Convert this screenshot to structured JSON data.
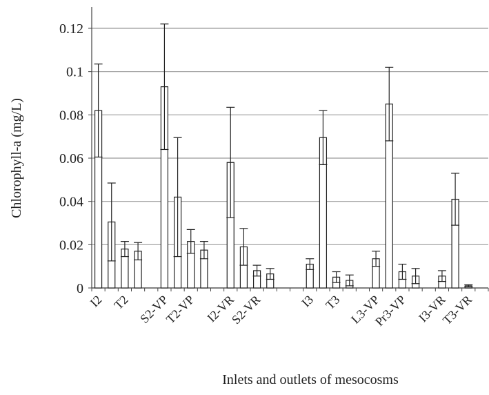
{
  "chart_data": {
    "type": "bar",
    "xlabel": "Inlets and outlets of mesocosms",
    "ylabel": "Chlorophyll-a (mg/L)",
    "categories": [
      "I2",
      null,
      "T2",
      null,
      null,
      "S2-VP",
      null,
      "T2-VP",
      null,
      null,
      "I2-VR",
      null,
      "S2-VR",
      null,
      null,
      null,
      "I3",
      null,
      "T3",
      null,
      null,
      "L3-VP",
      null,
      "Pr3-VP",
      null,
      null,
      "I3-VR",
      null,
      "T3-VR",
      null
    ],
    "values": [
      0.082,
      0.0305,
      0.018,
      0.017,
      null,
      0.093,
      0.042,
      0.0215,
      0.0175,
      null,
      0.058,
      0.019,
      0.008,
      0.0065,
      null,
      null,
      0.011,
      0.0695,
      0.005,
      0.0035,
      null,
      0.0135,
      0.085,
      0.0075,
      0.0055,
      null,
      0.0055,
      0.041,
      0.001,
      null
    ],
    "errors": [
      0.0215,
      0.018,
      0.0035,
      0.004,
      null,
      0.029,
      0.0275,
      0.0055,
      0.004,
      null,
      0.0255,
      0.0085,
      0.0025,
      0.0025,
      null,
      null,
      0.0025,
      0.0125,
      0.0025,
      0.0025,
      null,
      0.0035,
      0.017,
      0.0035,
      0.0035,
      null,
      0.0025,
      0.012,
      0.0005,
      null
    ],
    "color": "#ffffff",
    "edge_color": "#222222",
    "ylim": [
      0,
      0.12
    ],
    "yticks": [
      0,
      0.02,
      0.04,
      0.06,
      0.08,
      0.1,
      0.12
    ],
    "grid": true
  }
}
